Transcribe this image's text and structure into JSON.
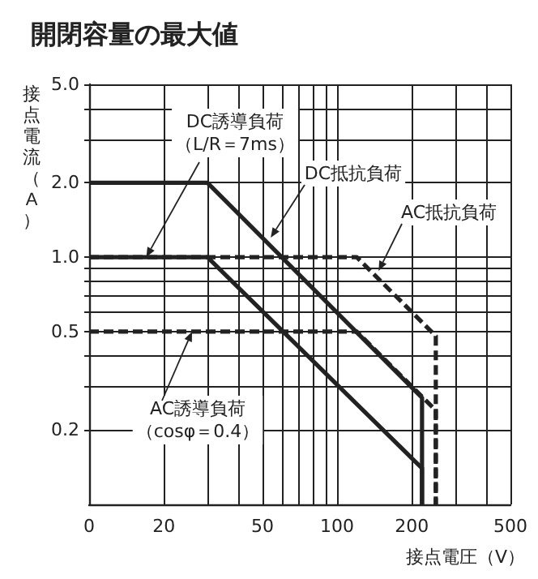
{
  "chart_data": {
    "type": "line",
    "title": "開閉容量の最大値",
    "xlabel": "接点電圧（V）",
    "ylabel": "接点電流（A）",
    "log": "xy",
    "grid": true,
    "marker": "none",
    "xlim": [
      0,
      500
    ],
    "xticks": [
      0,
      20,
      {
        "value": 30,
        "label": null
      },
      {
        "value": 40,
        "label": null
      },
      50,
      {
        "value": 60,
        "label": null
      },
      {
        "value": 70,
        "label": null
      },
      {
        "value": 80,
        "label": null
      },
      {
        "value": 90,
        "label": null
      },
      100,
      200,
      {
        "value": 300,
        "label": null
      },
      {
        "value": 400,
        "label": null
      },
      500
    ],
    "ylim": [
      0.1,
      5
    ],
    "yticks": [
      0.2,
      0.5,
      {
        "value": 1,
        "label": "1.0"
      },
      {
        "value": 2,
        "label": "2.0"
      },
      {
        "value": 5,
        "label": "5.0"
      }
    ],
    "series": [
      {
        "color": "#222222",
        "line_style": "solid",
        "x": [
          10,
          30,
          220,
          220
        ],
        "values": [
          2,
          2,
          0.27,
          0.1
        ]
      },
      {
        "color": "#222222",
        "line_style": "solid",
        "x": [
          10,
          30,
          220,
          220
        ],
        "values": [
          1,
          1,
          0.14,
          0.1
        ]
      },
      {
        "color": "#222222",
        "line_style": "dashed",
        "x": [
          10,
          120,
          250,
          250
        ],
        "values": [
          1,
          1,
          0.48,
          0.1
        ]
      },
      {
        "color": "#222222",
        "line_style": "dashed",
        "x": [
          10,
          120,
          250,
          250
        ],
        "values": [
          0.5,
          0.5,
          0.24,
          0.1
        ]
      }
    ],
    "annotations": [
      {
        "text": "DC誘導負荷（L/R＝7ms）",
        "x": 17,
        "y": 1
      },
      {
        "text": "DC抵抗負荷",
        "x": 54,
        "y": 1.2
      },
      {
        "text": "AC抵抗負荷",
        "x": 147,
        "y": 0.88
      },
      {
        "text": "AC誘導負荷（cosφ＝0.4）",
        "x": 26,
        "y": 0.5
      }
    ]
  }
}
